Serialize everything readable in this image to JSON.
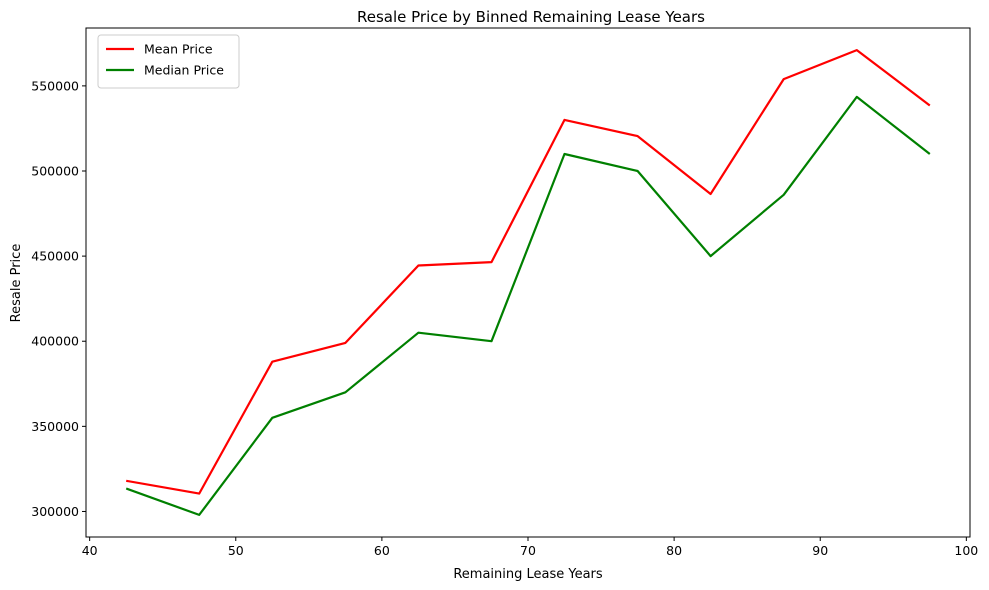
{
  "chart_data": {
    "type": "line",
    "title": "Resale Price by Binned Remaining Lease Years",
    "xlabel": "Remaining Lease Years",
    "ylabel": "Resale Price",
    "xlim": [
      39.75,
      100.25
    ],
    "ylim": [
      285000,
      584000
    ],
    "xticks": [
      40,
      50,
      60,
      70,
      80,
      90,
      100
    ],
    "yticks": [
      300000,
      350000,
      400000,
      450000,
      500000,
      550000
    ],
    "grid": false,
    "legend_position": "top-left",
    "x": [
      42.5,
      47.5,
      52.5,
      57.5,
      62.5,
      67.5,
      72.5,
      77.5,
      82.5,
      87.5,
      92.5,
      97.5
    ],
    "series": [
      {
        "name": "Mean Price",
        "color": "#ff0000",
        "values": [
          318000,
          310500,
          388000,
          399000,
          444500,
          446500,
          530000,
          520500,
          486500,
          554000,
          571000,
          538500
        ]
      },
      {
        "name": "Median Price",
        "color": "#008000",
        "values": [
          313500,
          298000,
          355000,
          370000,
          405000,
          400000,
          510000,
          500000,
          450000,
          486000,
          543500,
          510000
        ]
      }
    ]
  }
}
